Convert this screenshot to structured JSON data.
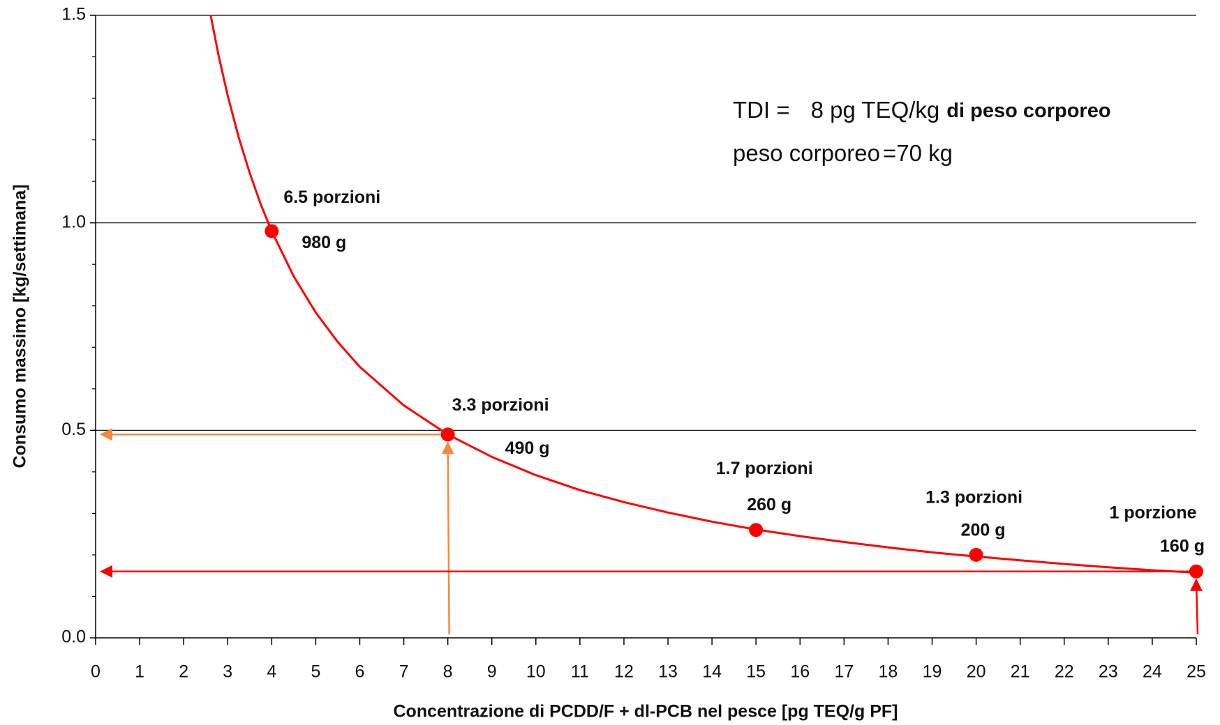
{
  "chart_data": {
    "type": "line",
    "xlabel": "Concentrazione di PCDD/F + dl-PCB nel pesce [pg TEQ/g PF]",
    "ylabel": "Consumo massimo [kg/settimana]",
    "xlim": [
      0,
      25
    ],
    "xticks": [
      0,
      1,
      2,
      3,
      4,
      5,
      6,
      7,
      8,
      9,
      10,
      11,
      12,
      13,
      14,
      15,
      16,
      17,
      18,
      19,
      20,
      21,
      22,
      23,
      24,
      25
    ],
    "ylim": [
      0,
      1.5
    ],
    "yticks": [
      {
        "value": 0,
        "label": "0.0"
      },
      0.5,
      {
        "value": 1,
        "label": "1.0"
      },
      1.5
    ],
    "y_minor_ticks": [
      0.1,
      0.2,
      0.3,
      0.4,
      0.6,
      0.7,
      0.8,
      0.9,
      1.1,
      1.2,
      1.3,
      1.4
    ],
    "grid": true,
    "curve": {
      "color": "#ff0000",
      "x": [
        2.62,
        2.8,
        3,
        3.25,
        3.5,
        3.75,
        4,
        4.5,
        5,
        5.5,
        6,
        7,
        8,
        9,
        10,
        11,
        12,
        13,
        14,
        15,
        16,
        17,
        18,
        19,
        20,
        21,
        22,
        23,
        24,
        25
      ],
      "values": [
        1.496,
        1.4,
        1.307,
        1.206,
        1.12,
        1.045,
        0.98,
        0.871,
        0.784,
        0.713,
        0.653,
        0.56,
        0.49,
        0.436,
        0.392,
        0.356,
        0.327,
        0.302,
        0.28,
        0.261,
        0.245,
        0.231,
        0.218,
        0.206,
        0.196,
        0.187,
        0.178,
        0.17,
        0.163,
        0.157
      ]
    },
    "points": {
      "color": "#ff0000",
      "x": [
        4,
        8,
        15,
        20,
        25
      ],
      "values": [
        0.98,
        0.49,
        0.26,
        0.2,
        0.16
      ],
      "value_labels": [
        "980 g",
        "490 g",
        "260 g",
        "200 g",
        "160 g"
      ],
      "annotations": [
        "6.5 porzioni",
        "3.3 porzioni",
        "1.7 porzioni",
        "1.3 porzioni",
        "1 porzione"
      ]
    },
    "guides": [
      {
        "point": 1,
        "color": "#f5883a"
      },
      {
        "point": 4,
        "color": "#ff0000"
      }
    ],
    "notes": [
      [
        "TDI =",
        "8 pg TEQ/kg",
        "di peso corporeo"
      ],
      [
        "peso corporeo",
        "=70 kg"
      ]
    ]
  }
}
